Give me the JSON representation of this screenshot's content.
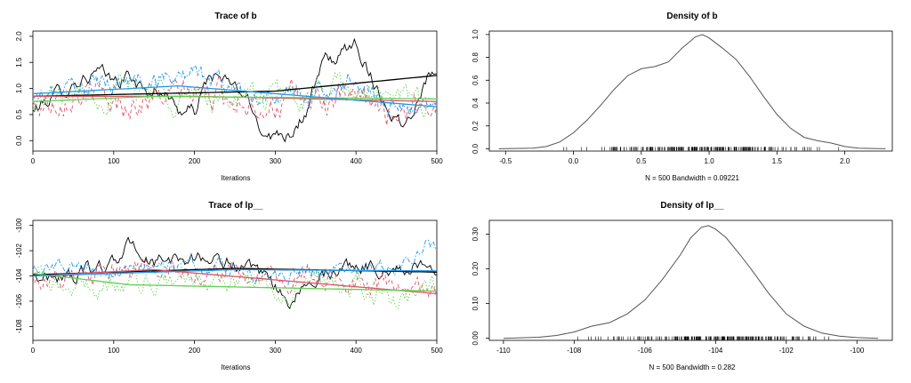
{
  "chart_data": [
    {
      "type": "line",
      "title": "Trace of b",
      "xlabel": "Iterations",
      "ylabel": "",
      "xlim": [
        0,
        500
      ],
      "ylim": [
        -0.2,
        2.1
      ],
      "xticks": [
        0,
        100,
        200,
        300,
        400,
        500
      ],
      "yticks": [
        0.0,
        0.5,
        1.0,
        1.5,
        2.0
      ],
      "ytick_labels": [
        "0.0",
        "0.5",
        "1.0",
        "1.5",
        "2.0"
      ],
      "series": [
        {
          "color": "#000000",
          "dash": "solid",
          "anchors": [
            [
              0,
              0.55
            ],
            [
              20,
              0.8
            ],
            [
              40,
              1.0
            ],
            [
              60,
              1.2
            ],
            [
              80,
              1.3
            ],
            [
              100,
              1.1
            ],
            [
              120,
              1.25
            ],
            [
              140,
              0.9
            ],
            [
              160,
              1.0
            ],
            [
              180,
              0.6
            ],
            [
              200,
              0.55
            ],
            [
              220,
              1.3
            ],
            [
              240,
              1.1
            ],
            [
              260,
              0.9
            ],
            [
              280,
              0.3
            ],
            [
              300,
              0.1
            ],
            [
              320,
              0.2
            ],
            [
              340,
              0.6
            ],
            [
              360,
              1.5
            ],
            [
              380,
              1.6
            ],
            [
              400,
              1.9
            ],
            [
              420,
              1.2
            ],
            [
              440,
              0.6
            ],
            [
              460,
              0.3
            ],
            [
              480,
              1.0
            ],
            [
              500,
              1.5
            ]
          ],
          "volatility": 0.22,
          "smooth": [
            [
              0,
              0.85
            ],
            [
              300,
              0.95
            ],
            [
              500,
              1.25
            ]
          ]
        },
        {
          "color": "#df536b",
          "dash": "4,3",
          "anchors": [
            [
              0,
              0.6
            ],
            [
              50,
              1.0
            ],
            [
              100,
              0.7
            ],
            [
              150,
              0.8
            ],
            [
              200,
              0.9
            ],
            [
              250,
              0.85
            ],
            [
              300,
              0.7
            ],
            [
              350,
              0.8
            ],
            [
              400,
              0.7
            ],
            [
              450,
              0.6
            ],
            [
              500,
              0.75
            ]
          ],
          "volatility": 0.42,
          "smooth": [
            [
              0,
              0.85
            ],
            [
              200,
              0.85
            ],
            [
              500,
              0.75
            ]
          ]
        },
        {
          "color": "#61d04f",
          "dash": "1.5,2",
          "anchors": [
            [
              0,
              0.7
            ],
            [
              50,
              0.9
            ],
            [
              100,
              0.95
            ],
            [
              150,
              1.0
            ],
            [
              200,
              0.8
            ],
            [
              250,
              0.85
            ],
            [
              300,
              0.8
            ],
            [
              350,
              0.85
            ],
            [
              400,
              0.9
            ],
            [
              450,
              0.7
            ],
            [
              500,
              0.8
            ]
          ],
          "volatility": 0.4,
          "smooth": [
            [
              0,
              0.75
            ],
            [
              150,
              0.85
            ],
            [
              500,
              0.8
            ]
          ]
        },
        {
          "color": "#2297e6",
          "dash": "5,2,1.5,2",
          "anchors": [
            [
              0,
              0.8
            ],
            [
              50,
              1.0
            ],
            [
              100,
              1.1
            ],
            [
              150,
              1.2
            ],
            [
              200,
              1.3
            ],
            [
              250,
              1.0
            ],
            [
              300,
              0.8
            ],
            [
              350,
              0.9
            ],
            [
              400,
              1.2
            ],
            [
              450,
              0.6
            ],
            [
              500,
              0.7
            ]
          ],
          "volatility": 0.3,
          "smooth": [
            [
              0,
              0.9
            ],
            [
              180,
              1.05
            ],
            [
              500,
              0.65
            ]
          ]
        }
      ]
    },
    {
      "type": "area",
      "title": "Density of b",
      "xlabel": "N = 500   Bandwidth = 0.09221",
      "ylabel": "",
      "xlim": [
        -0.62,
        2.35
      ],
      "ylim": [
        -0.02,
        1.03
      ],
      "xticks": [
        -0.5,
        0.0,
        0.5,
        1.0,
        1.5,
        2.0
      ],
      "xtick_labels": [
        "-0.5",
        "0.0",
        "0.5",
        "1.0",
        "1.5",
        "2.0"
      ],
      "yticks": [
        0.0,
        0.2,
        0.4,
        0.6,
        0.8,
        1.0
      ],
      "ytick_labels": [
        "0.0",
        "0.2",
        "0.4",
        "0.6",
        "0.8",
        "1.0"
      ],
      "curve": [
        [
          -0.55,
          0.0
        ],
        [
          -0.3,
          0.005
        ],
        [
          -0.2,
          0.02
        ],
        [
          -0.1,
          0.06
        ],
        [
          0.0,
          0.14
        ],
        [
          0.1,
          0.25
        ],
        [
          0.2,
          0.38
        ],
        [
          0.3,
          0.52
        ],
        [
          0.4,
          0.64
        ],
        [
          0.5,
          0.7
        ],
        [
          0.6,
          0.72
        ],
        [
          0.7,
          0.76
        ],
        [
          0.8,
          0.88
        ],
        [
          0.9,
          0.98
        ],
        [
          0.95,
          1.0
        ],
        [
          1.0,
          0.97
        ],
        [
          1.1,
          0.88
        ],
        [
          1.2,
          0.78
        ],
        [
          1.3,
          0.63
        ],
        [
          1.4,
          0.46
        ],
        [
          1.5,
          0.3
        ],
        [
          1.6,
          0.18
        ],
        [
          1.7,
          0.1
        ],
        [
          1.8,
          0.07
        ],
        [
          1.9,
          0.05
        ],
        [
          2.0,
          0.02
        ],
        [
          2.1,
          0.005
        ],
        [
          2.3,
          0.0
        ]
      ],
      "rug_range": [
        -0.25,
        2.05
      ],
      "rug_center": 0.95
    },
    {
      "type": "line",
      "title": "Trace of lp__",
      "xlabel": "Iterations",
      "ylabel": "",
      "xlim": [
        0,
        500
      ],
      "ylim": [
        -109.1,
        -99.6
      ],
      "xticks": [
        0,
        100,
        200,
        300,
        400,
        500
      ],
      "yticks": [
        -108,
        -106,
        -104,
        -102,
        -100
      ],
      "ytick_labels": [
        "-108",
        "-106",
        "-104",
        "-102",
        "-100"
      ],
      "series": [
        {
          "color": "#000000",
          "dash": "solid",
          "anchors": [
            [
              0,
              -104
            ],
            [
              50,
              -104
            ],
            [
              100,
              -103
            ],
            [
              120,
              -101.5
            ],
            [
              150,
              -103
            ],
            [
              200,
              -102.5
            ],
            [
              250,
              -103
            ],
            [
              300,
              -105
            ],
            [
              320,
              -106
            ],
            [
              350,
              -104
            ],
            [
              400,
              -103
            ],
            [
              450,
              -103.5
            ],
            [
              500,
              -103
            ]
          ],
          "volatility": 0.9,
          "smooth": [
            [
              0,
              -103.9
            ],
            [
              250,
              -103.4
            ],
            [
              500,
              -103.7
            ]
          ]
        },
        {
          "color": "#df536b",
          "dash": "4,3",
          "anchors": [
            [
              0,
              -104
            ],
            [
              50,
              -104.5
            ],
            [
              100,
              -104
            ],
            [
              150,
              -103
            ],
            [
              200,
              -103.5
            ],
            [
              250,
              -104
            ],
            [
              300,
              -104.5
            ],
            [
              350,
              -104
            ],
            [
              400,
              -104.5
            ],
            [
              450,
              -105
            ],
            [
              500,
              -105.5
            ]
          ],
          "volatility": 1.2,
          "smooth": [
            [
              0,
              -104
            ],
            [
              150,
              -103.5
            ],
            [
              500,
              -105.4
            ]
          ]
        },
        {
          "color": "#61d04f",
          "dash": "1.5,2",
          "anchors": [
            [
              0,
              -104
            ],
            [
              50,
              -105
            ],
            [
              100,
              -104.5
            ],
            [
              150,
              -104.5
            ],
            [
              200,
              -104
            ],
            [
              250,
              -104.5
            ],
            [
              300,
              -105
            ],
            [
              350,
              -104.5
            ],
            [
              400,
              -105
            ],
            [
              450,
              -106
            ],
            [
              500,
              -105
            ]
          ],
          "volatility": 1.3,
          "smooth": [
            [
              0,
              -103.8
            ],
            [
              120,
              -104.7
            ],
            [
              500,
              -105.2
            ]
          ]
        },
        {
          "color": "#2297e6",
          "dash": "5,2,1.5,2",
          "anchors": [
            [
              0,
              -103.5
            ],
            [
              50,
              -103
            ],
            [
              100,
              -104
            ],
            [
              150,
              -103.5
            ],
            [
              200,
              -103
            ],
            [
              250,
              -103.5
            ],
            [
              300,
              -104
            ],
            [
              350,
              -103.5
            ],
            [
              400,
              -103
            ],
            [
              450,
              -103.5
            ],
            [
              490,
              -101
            ],
            [
              500,
              -102
            ]
          ],
          "volatility": 0.9,
          "smooth": [
            [
              0,
              -104
            ],
            [
              250,
              -103.5
            ],
            [
              500,
              -103.6
            ]
          ]
        }
      ]
    },
    {
      "type": "area",
      "title": "Density of lp__",
      "xlabel": "N = 500   Bandwidth = 0.282",
      "ylabel": "",
      "xlim": [
        -110.4,
        -99.0
      ],
      "ylim": [
        -0.006,
        0.34
      ],
      "xticks": [
        -110,
        -108,
        -106,
        -104,
        -102,
        -100
      ],
      "xtick_labels": [
        "-110",
        "-108",
        "-106",
        "-104",
        "-102",
        "-100"
      ],
      "yticks": [
        0.0,
        0.1,
        0.2,
        0.3
      ],
      "ytick_labels": [
        "0.00",
        "0.10",
        "0.20",
        "0.30"
      ],
      "curve": [
        [
          -110,
          0.0
        ],
        [
          -109,
          0.003
        ],
        [
          -108.5,
          0.008
        ],
        [
          -108,
          0.018
        ],
        [
          -107.5,
          0.035
        ],
        [
          -107,
          0.045
        ],
        [
          -106.5,
          0.07
        ],
        [
          -106,
          0.11
        ],
        [
          -105.5,
          0.17
        ],
        [
          -105,
          0.24
        ],
        [
          -104.7,
          0.29
        ],
        [
          -104.4,
          0.32
        ],
        [
          -104.2,
          0.325
        ],
        [
          -104,
          0.315
        ],
        [
          -103.7,
          0.29
        ],
        [
          -103.3,
          0.24
        ],
        [
          -103,
          0.2
        ],
        [
          -102.5,
          0.13
        ],
        [
          -102,
          0.07
        ],
        [
          -101.5,
          0.035
        ],
        [
          -101,
          0.015
        ],
        [
          -100.5,
          0.006
        ],
        [
          -100,
          0.002
        ],
        [
          -99.4,
          0.0
        ]
      ],
      "rug_range": [
        -108.8,
        -100.8
      ],
      "rug_center": -104.2
    }
  ]
}
